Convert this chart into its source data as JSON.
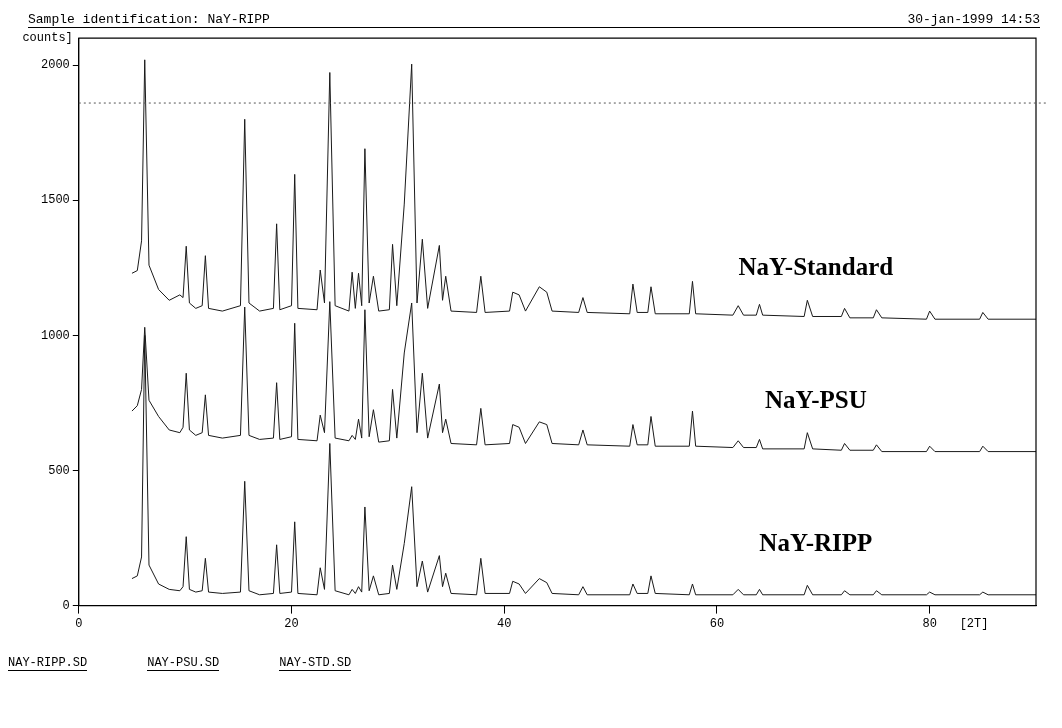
{
  "chart_data": {
    "type": "line",
    "title": "Sample identification: NaY-RIPP",
    "subtitle": "30-jan-1999 14:53",
    "xlabel": "[2T]",
    "ylabel": "counts]",
    "annotations": [
      "NAY-RIPP.SD",
      "NAY-PSU.SD",
      "NAY-STD.SD"
    ],
    "x": [
      5,
      5.5,
      5.9,
      6.2,
      6.6,
      7.5,
      8.5,
      9.5,
      9.8,
      10.1,
      10.4,
      11,
      11.6,
      11.9,
      12.2,
      13.5,
      15.2,
      15.6,
      16,
      17,
      18.3,
      18.6,
      18.9,
      20,
      20.3,
      20.6,
      22.4,
      22.7,
      23.1,
      23.6,
      24.1,
      25.4,
      25.7,
      26,
      26.3,
      26.6,
      26.9,
      27.3,
      27.7,
      28.2,
      29.2,
      29.5,
      29.9,
      30.6,
      31.3,
      31.8,
      32.3,
      32.8,
      33.9,
      34.2,
      34.5,
      35,
      37.4,
      37.8,
      38.2,
      40.5,
      40.8,
      41.4,
      42,
      43.3,
      44,
      44.5,
      47,
      47.4,
      47.8,
      51.8,
      52.1,
      52.5,
      53.5,
      53.8,
      54.2,
      57.4,
      57.7,
      58,
      61.5,
      62,
      62.5,
      63.7,
      64,
      64.3,
      68.2,
      68.5,
      69,
      71.7,
      72,
      72.5,
      74.7,
      75,
      75.5,
      79.7,
      80,
      80.5,
      84.7,
      85,
      85.5,
      90
    ],
    "series": [
      {
        "name": "NaY-Standard",
        "color": "#1a1a1a",
        "values": [
          1230,
          1240,
          1350,
          2020,
          1260,
          1170,
          1130,
          1150,
          1140,
          1330,
          1120,
          1100,
          1110,
          1295,
          1100,
          1090,
          1110,
          1800,
          1120,
          1090,
          1100,
          1413,
          1095,
          1110,
          1596,
          1100,
          1095,
          1242,
          1120,
          1973,
          1110,
          1090,
          1234,
          1100,
          1230,
          1110,
          1691,
          1120,
          1219,
          1090,
          1095,
          1337,
          1110,
          1486,
          2004,
          1120,
          1356,
          1100,
          1333,
          1130,
          1219,
          1090,
          1085,
          1219,
          1085,
          1090,
          1160,
          1150,
          1090,
          1180,
          1160,
          1090,
          1085,
          1140,
          1085,
          1080,
          1190,
          1085,
          1085,
          1180,
          1080,
          1080,
          1200,
          1080,
          1075,
          1110,
          1075,
          1075,
          1115,
          1075,
          1070,
          1130,
          1070,
          1070,
          1100,
          1065,
          1065,
          1095,
          1065,
          1060,
          1090,
          1060,
          1060,
          1085,
          1060,
          1060
        ]
      },
      {
        "name": "NaY-PSU",
        "color": "#1a1a1a",
        "values": [
          720,
          740,
          800,
          1030,
          760,
          700,
          650,
          640,
          660,
          860,
          650,
          630,
          640,
          780,
          630,
          620,
          630,
          1105,
          630,
          615,
          620,
          825,
          615,
          625,
          1045,
          615,
          610,
          705,
          640,
          1125,
          620,
          610,
          630,
          615,
          690,
          620,
          1095,
          625,
          725,
          605,
          610,
          800,
          620,
          935,
          1120,
          640,
          860,
          620,
          820,
          640,
          690,
          600,
          595,
          730,
          595,
          600,
          670,
          660,
          600,
          680,
          670,
          600,
          595,
          650,
          595,
          590,
          670,
          595,
          595,
          700,
          590,
          590,
          720,
          590,
          585,
          610,
          585,
          585,
          615,
          580,
          580,
          640,
          580,
          575,
          600,
          575,
          575,
          595,
          570,
          570,
          590,
          570,
          570,
          590,
          570,
          570
        ]
      },
      {
        "name": "NaY-RIPP",
        "color": "#1a1a1a",
        "values": [
          100,
          110,
          180,
          1000,
          150,
          80,
          60,
          55,
          70,
          255,
          60,
          50,
          55,
          175,
          50,
          45,
          50,
          460,
          55,
          40,
          45,
          225,
          45,
          50,
          310,
          45,
          40,
          140,
          60,
          600,
          55,
          40,
          60,
          45,
          70,
          50,
          365,
          55,
          110,
          40,
          45,
          150,
          60,
          230,
          440,
          70,
          165,
          50,
          185,
          70,
          120,
          45,
          40,
          175,
          45,
          45,
          90,
          80,
          45,
          100,
          85,
          45,
          40,
          70,
          40,
          40,
          80,
          45,
          45,
          110,
          45,
          40,
          80,
          40,
          40,
          60,
          40,
          40,
          60,
          40,
          40,
          75,
          40,
          40,
          55,
          40,
          40,
          55,
          40,
          40,
          50,
          40,
          40,
          50,
          40,
          40
        ]
      }
    ],
    "xlim": [
      0,
      90
    ],
    "xticks": [
      0,
      20,
      40,
      60,
      80
    ],
    "ylim": [
      0,
      2100
    ],
    "yticks": [
      0,
      500,
      1000,
      1500,
      2000
    ],
    "ref_lines": [
      {
        "axis": "y",
        "value": 1860,
        "color": "#555555",
        "line_style": "dotted"
      }
    ],
    "grid": false,
    "legend": false,
    "marker": "none",
    "line_style": "solid"
  }
}
